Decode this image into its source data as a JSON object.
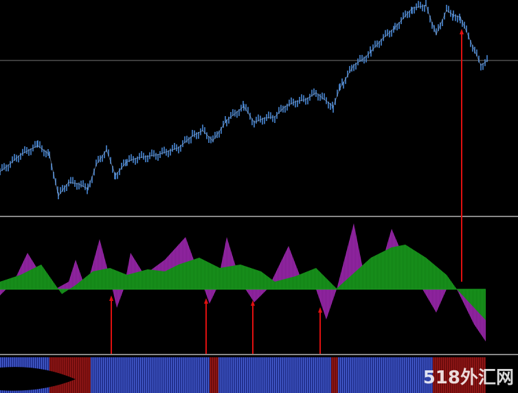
{
  "watermark": "518外汇网"
}
